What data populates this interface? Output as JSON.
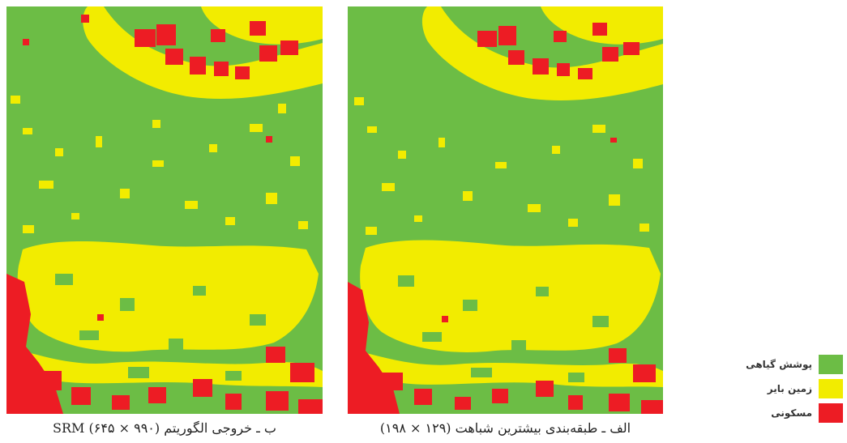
{
  "colors": {
    "vegetation": "#6cbd45",
    "bare_land": "#f2ec00",
    "residential": "#ed1c24"
  },
  "panels": {
    "b": {
      "caption": "ب ـ خروجی الگوریتم SRM (۶۴۵ × ۹۹۰)"
    },
    "a": {
      "caption": "الف ـ طبقه‌بندی بیشترین شباهت (۱۲۹ × ۱۹۸)"
    }
  },
  "legend": {
    "items": [
      {
        "label": "پوشش گیاهی",
        "color": "#6cbd45"
      },
      {
        "label": "زمین بایر",
        "color": "#f2ec00"
      },
      {
        "label": "مسکونی",
        "color": "#ed1c24"
      }
    ]
  }
}
